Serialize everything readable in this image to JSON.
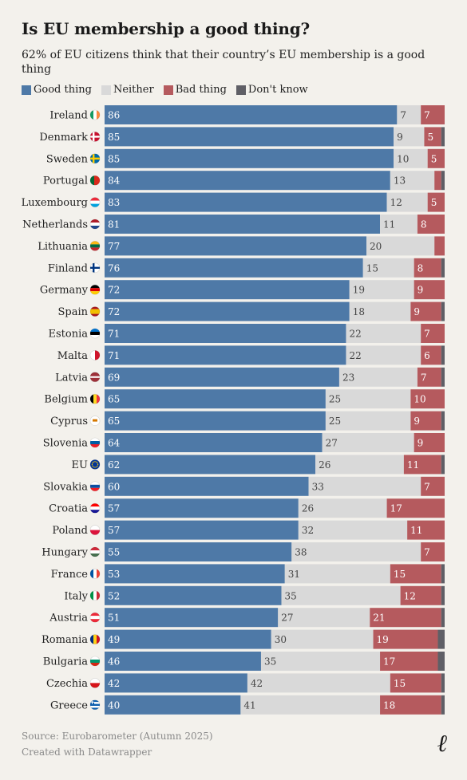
{
  "title": "Is EU membership a good thing?",
  "subtitle": "62% of EU citizens think that their country’s EU membership is a good thing",
  "legend": [
    {
      "label": "Good thing",
      "color": "#4e79a7"
    },
    {
      "label": "Neither",
      "color": "#d9d9d9"
    },
    {
      "label": "Bad thing",
      "color": "#b55a5e"
    },
    {
      "label": "Don't know",
      "color": "#5f5f66"
    }
  ],
  "footer": {
    "source": "Source: Eurobarometer (Autumn 2025)",
    "credit": "Created with Datawrapper"
  },
  "logo": {
    "text": "ℓ"
  },
  "chart_data": {
    "type": "bar",
    "orientation": "horizontal",
    "stacked": true,
    "xlim": [
      0,
      100
    ],
    "categories": [
      "Ireland",
      "Denmark",
      "Sweden",
      "Portugal",
      "Luxembourg",
      "Netherlands",
      "Lithuania",
      "Finland",
      "Germany",
      "Spain",
      "Estonia",
      "Malta",
      "Latvia",
      "Belgium",
      "Cyprus",
      "Slovenia",
      "EU",
      "Slovakia",
      "Croatia",
      "Poland",
      "Hungary",
      "France",
      "Italy",
      "Austria",
      "Romania",
      "Bulgaria",
      "Czechia",
      "Greece"
    ],
    "flags": [
      "ireland-flag-icon",
      "denmark-flag-icon",
      "sweden-flag-icon",
      "portugal-flag-icon",
      "luxembourg-flag-icon",
      "netherlands-flag-icon",
      "lithuania-flag-icon",
      "finland-flag-icon",
      "germany-flag-icon",
      "spain-flag-icon",
      "estonia-flag-icon",
      "malta-flag-icon",
      "latvia-flag-icon",
      "belgium-flag-icon",
      "cyprus-flag-icon",
      "slovenia-flag-icon",
      "eu-flag-icon",
      "slovakia-flag-icon",
      "croatia-flag-icon",
      "poland-flag-icon",
      "hungary-flag-icon",
      "france-flag-icon",
      "italy-flag-icon",
      "austria-flag-icon",
      "romania-flag-icon",
      "bulgaria-flag-icon",
      "czechia-flag-icon",
      "greece-flag-icon"
    ],
    "series": [
      {
        "name": "Good thing",
        "color": "#4e79a7",
        "values": [
          86,
          85,
          85,
          84,
          83,
          81,
          77,
          76,
          72,
          72,
          71,
          71,
          69,
          65,
          65,
          64,
          62,
          60,
          57,
          57,
          55,
          53,
          52,
          51,
          49,
          46,
          42,
          40
        ]
      },
      {
        "name": "Neither",
        "color": "#d9d9d9",
        "values": [
          7,
          9,
          10,
          13,
          12,
          11,
          20,
          15,
          19,
          18,
          22,
          22,
          23,
          25,
          25,
          27,
          26,
          33,
          26,
          32,
          38,
          31,
          35,
          27,
          30,
          35,
          42,
          41
        ]
      },
      {
        "name": "Bad thing",
        "color": "#b55a5e",
        "values": [
          7,
          5,
          5,
          2,
          5,
          8,
          3,
          8,
          9,
          9,
          7,
          6,
          7,
          10,
          9,
          9,
          11,
          7,
          17,
          11,
          7,
          15,
          12,
          21,
          19,
          17,
          15,
          18
        ]
      },
      {
        "name": "Don't know",
        "color": "#5f5f66",
        "values": [
          0,
          1,
          0,
          1,
          0,
          0,
          0,
          1,
          0,
          1,
          0,
          1,
          1,
          0,
          1,
          0,
          1,
          0,
          0,
          0,
          0,
          1,
          1,
          1,
          2,
          2,
          1,
          1
        ]
      }
    ],
    "labels": {
      "Good thing": [
        "86",
        "85",
        "85",
        "84",
        "83",
        "81",
        "77",
        "76",
        "72",
        "72",
        "71",
        "71",
        "69",
        "65",
        "65",
        "64",
        "62",
        "60",
        "57",
        "57",
        "55",
        "53",
        "52",
        "51",
        "49",
        "46",
        "42",
        "40"
      ],
      "Neither": [
        "7",
        "9",
        "10",
        "13",
        "12",
        "11",
        "20",
        "15",
        "19",
        "18",
        "22",
        "22",
        "23",
        "25",
        "25",
        "27",
        "26",
        "33",
        "26",
        "32",
        "38",
        "31",
        "35",
        "27",
        "30",
        "35",
        "42",
        "41"
      ],
      "Bad thing": [
        "7",
        "5",
        "5",
        "",
        "5",
        "8",
        "",
        "8",
        "9",
        "9",
        "7",
        "6",
        "7",
        "10",
        "9",
        "9",
        "11",
        "7",
        "17",
        "11",
        "7",
        "15",
        "12",
        "21",
        "19",
        "17",
        "15",
        "18"
      ]
    }
  }
}
